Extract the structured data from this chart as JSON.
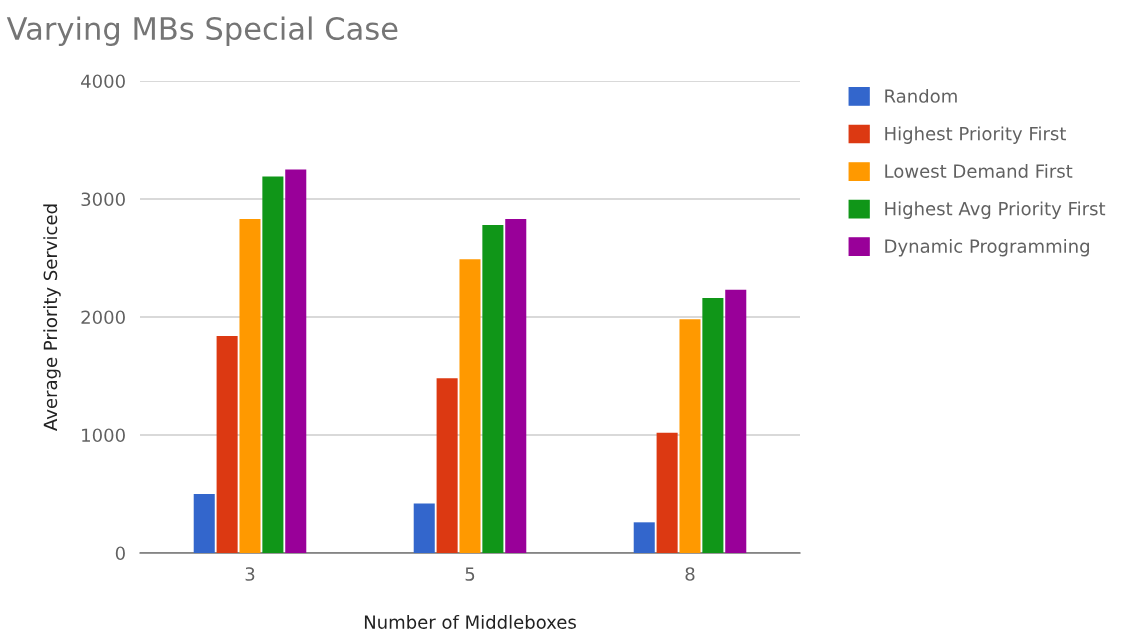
{
  "chart_data": {
    "type": "bar",
    "title": "Varying MBs Special Case",
    "xlabel": "Number of Middleboxes",
    "ylabel": "Average Priority Serviced",
    "categories": [
      "3",
      "5",
      "8"
    ],
    "series": [
      {
        "name": "Random",
        "color": "#3366cc",
        "values": [
          500,
          420,
          260
        ]
      },
      {
        "name": "Highest Priority First",
        "color": "#dc3912",
        "values": [
          1840,
          1480,
          1020
        ]
      },
      {
        "name": "Lowest Demand First",
        "color": "#ff9900",
        "values": [
          2830,
          2490,
          1980
        ]
      },
      {
        "name": "Highest Avg Priority First",
        "color": "#109618",
        "values": [
          3190,
          2780,
          2160
        ]
      },
      {
        "name": "Dynamic Programming",
        "color": "#990099",
        "values": [
          3250,
          2830,
          2230
        ]
      }
    ],
    "ylim": [
      0,
      4000
    ],
    "yticks": [
      0,
      1000,
      2000,
      3000,
      4000
    ],
    "grid": "y",
    "legend": "right"
  }
}
